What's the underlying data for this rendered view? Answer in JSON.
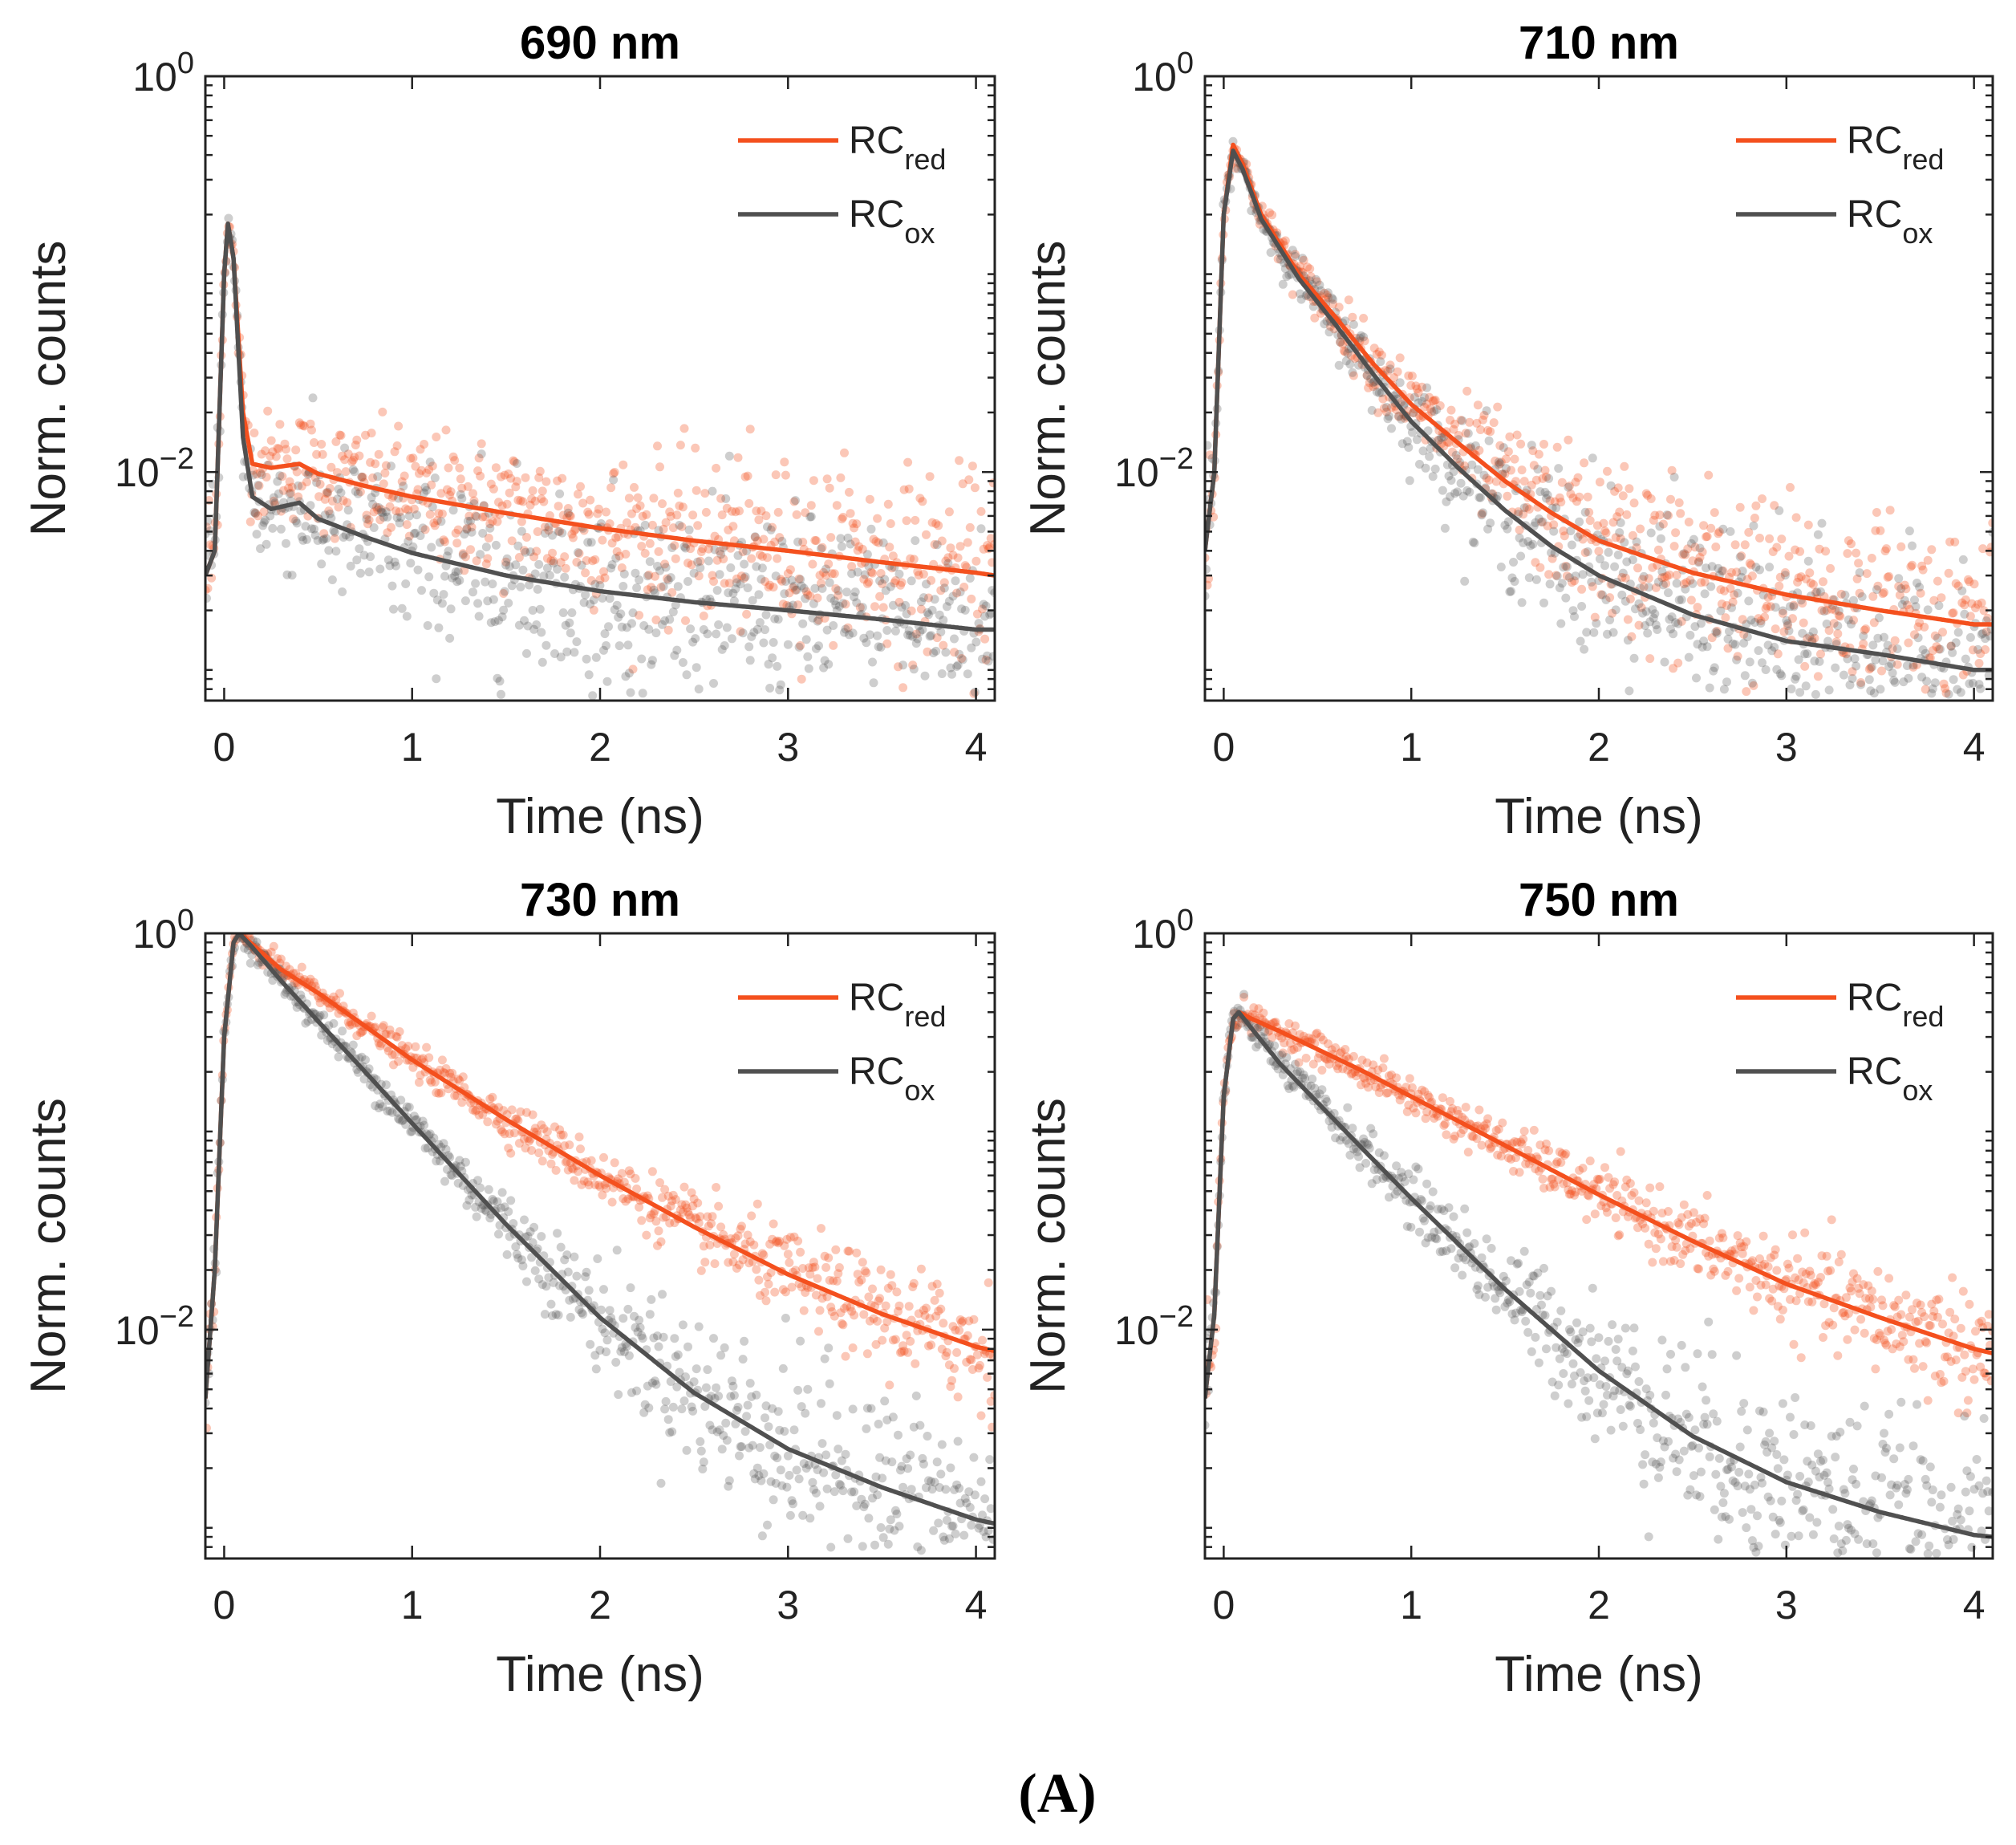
{
  "figure_label": "(A)",
  "colors": {
    "red": "#f4501e",
    "ox": "#505050",
    "axis": "#222222"
  },
  "chart_data": [
    {
      "type": "scatter",
      "title": "690 nm",
      "xlabel": "Time (ns)",
      "ylabel": "Norm. counts",
      "xlim": [
        -0.1,
        4.1
      ],
      "ylim": [
        0.0007,
        1
      ],
      "yscale": "log",
      "xticks": [
        "0",
        "1",
        "2",
        "3",
        "4"
      ],
      "yticks": [
        {
          "base": "10",
          "exp": "0",
          "value": 1
        },
        {
          "base": "10",
          "exp": "−2",
          "value": 0.01
        }
      ],
      "legend": {
        "position": "top-right",
        "entries": [
          {
            "name": "RC",
            "sub": "red",
            "color": "#f4501e"
          },
          {
            "name": "RC",
            "sub": "ox",
            "color": "#505050"
          }
        ]
      },
      "series": [
        {
          "name": "RC_red",
          "x": [
            -0.1,
            -0.05,
            0,
            0.02,
            0.05,
            0.1,
            0.15,
            0.25,
            0.4,
            0.5,
            0.75,
            1,
            1.5,
            2,
            2.5,
            3,
            3.5,
            4,
            4.1
          ],
          "y": [
            0.003,
            0.004,
            0.1,
            0.18,
            0.12,
            0.02,
            0.011,
            0.0105,
            0.011,
            0.0098,
            0.0085,
            0.0075,
            0.0062,
            0.0052,
            0.0045,
            0.004,
            0.0035,
            0.0031,
            0.003
          ]
        },
        {
          "name": "RC_ox",
          "x": [
            -0.1,
            -0.05,
            0,
            0.02,
            0.05,
            0.1,
            0.15,
            0.25,
            0.4,
            0.5,
            0.75,
            1,
            1.5,
            2,
            2.5,
            3,
            3.5,
            4,
            4.1
          ],
          "y": [
            0.003,
            0.004,
            0.1,
            0.18,
            0.12,
            0.015,
            0.0075,
            0.0065,
            0.007,
            0.0058,
            0.0047,
            0.0039,
            0.003,
            0.0025,
            0.0022,
            0.002,
            0.0018,
            0.0016,
            0.0016
          ]
        }
      ]
    },
    {
      "type": "scatter",
      "title": "710 nm",
      "xlabel": "Time (ns)",
      "ylabel": "Norm. counts",
      "xlim": [
        -0.1,
        4.1
      ],
      "ylim": [
        0.0007,
        1
      ],
      "yscale": "log",
      "xticks": [
        "0",
        "1",
        "2",
        "3",
        "4"
      ],
      "yticks": [
        {
          "base": "10",
          "exp": "0",
          "value": 1
        },
        {
          "base": "10",
          "exp": "−2",
          "value": 0.01
        }
      ],
      "legend": {
        "position": "top-right",
        "entries": [
          {
            "name": "RC",
            "sub": "red",
            "color": "#f4501e"
          },
          {
            "name": "RC",
            "sub": "ox",
            "color": "#505050"
          }
        ]
      },
      "series": [
        {
          "name": "RC_red",
          "x": [
            -0.1,
            -0.05,
            0,
            0.05,
            0.1,
            0.2,
            0.4,
            0.6,
            0.8,
            1,
            1.25,
            1.5,
            1.75,
            2,
            2.5,
            3,
            3.5,
            4,
            4.1
          ],
          "y": [
            0.004,
            0.01,
            0.2,
            0.45,
            0.36,
            0.2,
            0.1,
            0.06,
            0.035,
            0.022,
            0.014,
            0.009,
            0.0062,
            0.0045,
            0.0031,
            0.0024,
            0.002,
            0.0017,
            0.0017
          ]
        },
        {
          "name": "RC_ox",
          "x": [
            -0.1,
            -0.05,
            0,
            0.05,
            0.1,
            0.2,
            0.4,
            0.6,
            0.8,
            1,
            1.25,
            1.5,
            1.75,
            2,
            2.5,
            3,
            3.5,
            4,
            4.1
          ],
          "y": [
            0.004,
            0.01,
            0.2,
            0.42,
            0.34,
            0.19,
            0.095,
            0.055,
            0.031,
            0.018,
            0.0105,
            0.0064,
            0.0042,
            0.003,
            0.0019,
            0.0014,
            0.0012,
            0.001,
            0.001
          ]
        }
      ]
    },
    {
      "type": "scatter",
      "title": "730 nm",
      "xlabel": "Time (ns)",
      "ylabel": "Norm. counts",
      "xlim": [
        -0.1,
        4.1
      ],
      "ylim": [
        0.0007,
        1
      ],
      "yscale": "log",
      "xticks": [
        "0",
        "1",
        "2",
        "3",
        "4"
      ],
      "yticks": [
        {
          "base": "10",
          "exp": "0",
          "value": 1
        },
        {
          "base": "10",
          "exp": "−2",
          "value": 0.01
        }
      ],
      "legend": {
        "position": "top-right",
        "entries": [
          {
            "name": "RC",
            "sub": "red",
            "color": "#f4501e"
          },
          {
            "name": "RC",
            "sub": "ox",
            "color": "#505050"
          }
        ]
      },
      "series": [
        {
          "name": "RC_red",
          "x": [
            -0.1,
            -0.05,
            0,
            0.05,
            0.08,
            0.15,
            0.3,
            0.5,
            0.75,
            1,
            1.5,
            2,
            2.5,
            3,
            3.5,
            4,
            4.1
          ],
          "y": [
            0.0045,
            0.02,
            0.3,
            0.9,
            1.0,
            0.88,
            0.66,
            0.5,
            0.34,
            0.23,
            0.115,
            0.06,
            0.033,
            0.019,
            0.012,
            0.0082,
            0.0078
          ]
        },
        {
          "name": "RC_ox",
          "x": [
            -0.1,
            -0.05,
            0,
            0.05,
            0.08,
            0.15,
            0.3,
            0.5,
            0.75,
            1,
            1.5,
            2,
            2.5,
            3,
            3.5,
            4,
            4.1
          ],
          "y": [
            0.0045,
            0.02,
            0.3,
            0.9,
            1.0,
            0.85,
            0.58,
            0.36,
            0.2,
            0.11,
            0.034,
            0.0115,
            0.0048,
            0.0025,
            0.0016,
            0.0011,
            0.00105
          ]
        }
      ]
    },
    {
      "type": "scatter",
      "title": "750 nm",
      "xlabel": "Time (ns)",
      "ylabel": "Norm. counts",
      "xlim": [
        -0.1,
        4.1
      ],
      "ylim": [
        0.0007,
        1
      ],
      "yscale": "log",
      "xticks": [
        "0",
        "1",
        "2",
        "3",
        "4"
      ],
      "yticks": [
        {
          "base": "10",
          "exp": "0",
          "value": 1
        },
        {
          "base": "10",
          "exp": "−2",
          "value": 0.01
        }
      ],
      "legend": {
        "position": "top-right",
        "entries": [
          {
            "name": "RC",
            "sub": "red",
            "color": "#f4501e"
          },
          {
            "name": "RC",
            "sub": "ox",
            "color": "#505050"
          }
        ]
      },
      "series": [
        {
          "name": "RC_red",
          "x": [
            -0.1,
            -0.05,
            0,
            0.05,
            0.08,
            0.15,
            0.3,
            0.5,
            0.75,
            1,
            1.5,
            2,
            2.5,
            3,
            3.5,
            4,
            4.1
          ],
          "y": [
            0.0045,
            0.012,
            0.15,
            0.37,
            0.4,
            0.37,
            0.32,
            0.26,
            0.2,
            0.15,
            0.085,
            0.048,
            0.028,
            0.017,
            0.0115,
            0.008,
            0.0076
          ]
        },
        {
          "name": "RC_ox",
          "x": [
            -0.1,
            -0.05,
            0,
            0.05,
            0.08,
            0.15,
            0.3,
            0.5,
            0.75,
            1,
            1.5,
            2,
            2.5,
            3,
            3.5,
            4,
            4.1
          ],
          "y": [
            0.0045,
            0.012,
            0.15,
            0.37,
            0.4,
            0.33,
            0.22,
            0.14,
            0.08,
            0.046,
            0.016,
            0.0062,
            0.0029,
            0.0017,
            0.0012,
            0.00092,
            0.0009
          ]
        }
      ]
    }
  ]
}
